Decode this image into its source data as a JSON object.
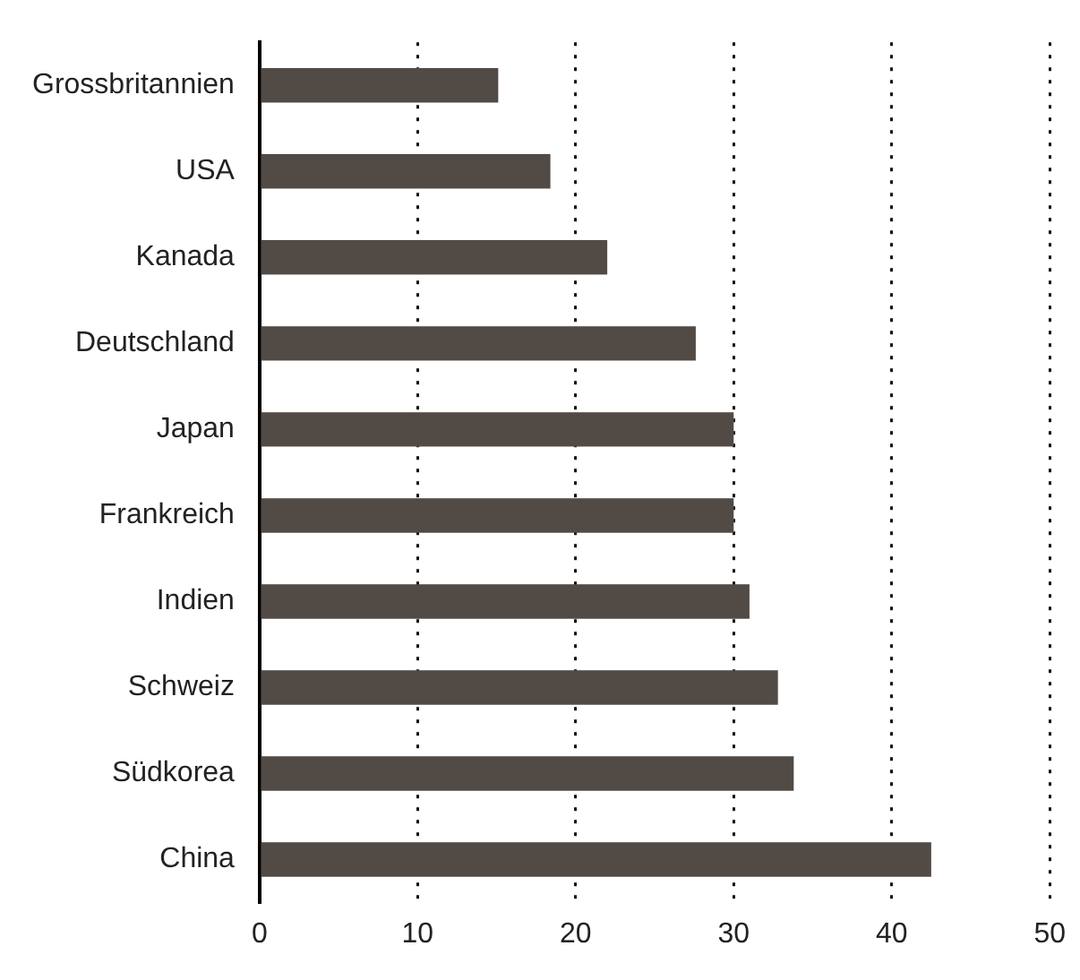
{
  "chart_data": {
    "type": "bar",
    "orientation": "horizontal",
    "categories": [
      "Grossbritannien",
      "USA",
      "Kanada",
      "Deutschland",
      "Japan",
      "Frankreich",
      "Indien",
      "Schweiz",
      "Südkorea",
      "China"
    ],
    "values": [
      15.1,
      18.4,
      22.0,
      27.6,
      30.0,
      30.0,
      31.0,
      32.8,
      33.8,
      42.5
    ],
    "color": "#524a45",
    "xlim": [
      0,
      50
    ],
    "xticks": [
      0,
      10,
      20,
      30,
      40,
      50
    ],
    "grid": "x",
    "legend": false
  }
}
